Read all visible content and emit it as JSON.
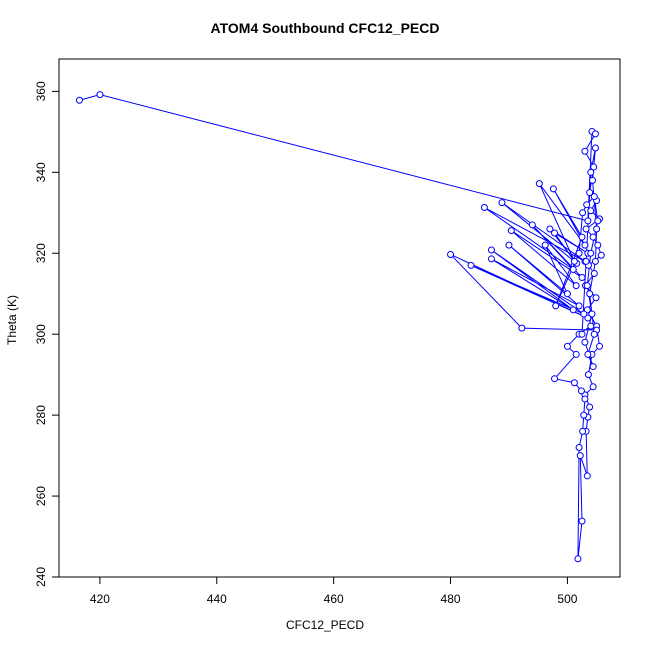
{
  "chart_data": {
    "type": "line",
    "title": "ATOM4 Southbound CFC12_PECD",
    "xlabel": "CFC12_PECD",
    "ylabel": "Theta (K)",
    "xlim": [
      413,
      509
    ],
    "ylim": [
      240,
      368
    ],
    "xticks": [
      420,
      440,
      460,
      480,
      500
    ],
    "yticks": [
      240,
      260,
      280,
      300,
      320,
      340,
      360
    ],
    "grid": false,
    "legend": "none",
    "color": "#0000ff",
    "markers": "open-circle",
    "series": [
      {
        "points": [
          [
            416.5,
            357.8
          ],
          [
            420.0,
            359.2
          ],
          [
            503.5,
            328.0
          ],
          [
            504.2,
            350.1
          ],
          [
            504.8,
            349.5
          ],
          [
            503.0,
            345.2
          ],
          [
            504.5,
            341.3
          ],
          [
            503.8,
            335.0
          ],
          [
            505.0,
            333.0
          ],
          [
            504.0,
            330.5
          ],
          [
            505.5,
            328.5
          ],
          [
            503.2,
            326.0
          ],
          [
            504.4,
            324.0
          ],
          [
            505.2,
            322.0
          ],
          [
            505.8,
            319.5
          ],
          [
            503.6,
            317.0
          ],
          [
            504.6,
            315.0
          ],
          [
            503.1,
            312.0
          ],
          [
            504.9,
            309.0
          ],
          [
            503.4,
            306.0
          ],
          [
            505.0,
            302.0
          ],
          [
            505.5,
            297.0
          ],
          [
            504.2,
            295.0
          ],
          [
            503.6,
            290.0
          ],
          [
            504.4,
            287.0
          ],
          [
            503.0,
            285.0
          ],
          [
            503.8,
            282.0
          ],
          [
            503.5,
            279.5
          ],
          [
            503.2,
            276.0
          ],
          [
            503.4,
            265.0
          ],
          [
            502.2,
            270.0
          ],
          [
            502.5,
            253.8
          ],
          [
            501.8,
            244.5
          ],
          [
            502.0,
            272.0
          ],
          [
            502.6,
            276.0
          ],
          [
            502.8,
            280.0
          ],
          [
            503.0,
            284.0
          ],
          [
            502.4,
            286.0
          ],
          [
            501.2,
            288.0
          ],
          [
            497.8,
            289.0
          ],
          [
            501.5,
            295.0
          ],
          [
            500.0,
            297.0
          ],
          [
            502.0,
            300.0
          ],
          [
            504.0,
            302.0
          ],
          [
            505.0,
            301.0
          ],
          [
            492.2,
            301.5
          ],
          [
            480.0,
            319.7
          ],
          [
            503.5,
            304.0
          ],
          [
            483.5,
            317.0
          ],
          [
            502.8,
            305.0
          ],
          [
            487.0,
            320.8
          ],
          [
            501.0,
            306.0
          ],
          [
            487.0,
            318.6
          ],
          [
            502.0,
            307.0
          ],
          [
            490.0,
            322.0
          ],
          [
            500.0,
            310.0
          ],
          [
            496.2,
            322.0
          ],
          [
            501.5,
            312.0
          ],
          [
            490.4,
            325.6
          ],
          [
            502.5,
            314.0
          ],
          [
            494.0,
            327.0
          ],
          [
            501.0,
            316.0
          ],
          [
            485.8,
            331.3
          ],
          [
            503.0,
            318.0
          ],
          [
            488.8,
            332.5
          ],
          [
            501.6,
            317.5
          ],
          [
            497.0,
            326.0
          ],
          [
            503.5,
            320.0
          ],
          [
            497.8,
            325.0
          ],
          [
            501.2,
            318.0
          ],
          [
            495.2,
            337.2
          ],
          [
            503.0,
            322.0
          ],
          [
            497.6,
            335.9
          ],
          [
            502.5,
            324.0
          ],
          [
            498.0,
            307.0
          ],
          [
            502.0,
            320.0
          ],
          [
            502.6,
            330.0
          ],
          [
            503.3,
            332.0
          ],
          [
            504.6,
            334.0
          ],
          [
            505.2,
            328.0
          ],
          [
            504.0,
            320.0
          ],
          [
            503.4,
            312.0
          ],
          [
            504.2,
            305.0
          ],
          [
            503.0,
            298.0
          ],
          [
            504.4,
            292.0
          ],
          [
            503.5,
            295.0
          ],
          [
            504.6,
            300.0
          ],
          [
            503.8,
            310.0
          ],
          [
            504.8,
            318.0
          ],
          [
            505.0,
            326.0
          ],
          [
            504.3,
            338.0
          ],
          [
            504.8,
            346.0
          ],
          [
            504.0,
            340.0
          ],
          [
            503.2,
            318.0
          ],
          [
            502.5,
            300.0
          ]
        ]
      }
    ]
  }
}
